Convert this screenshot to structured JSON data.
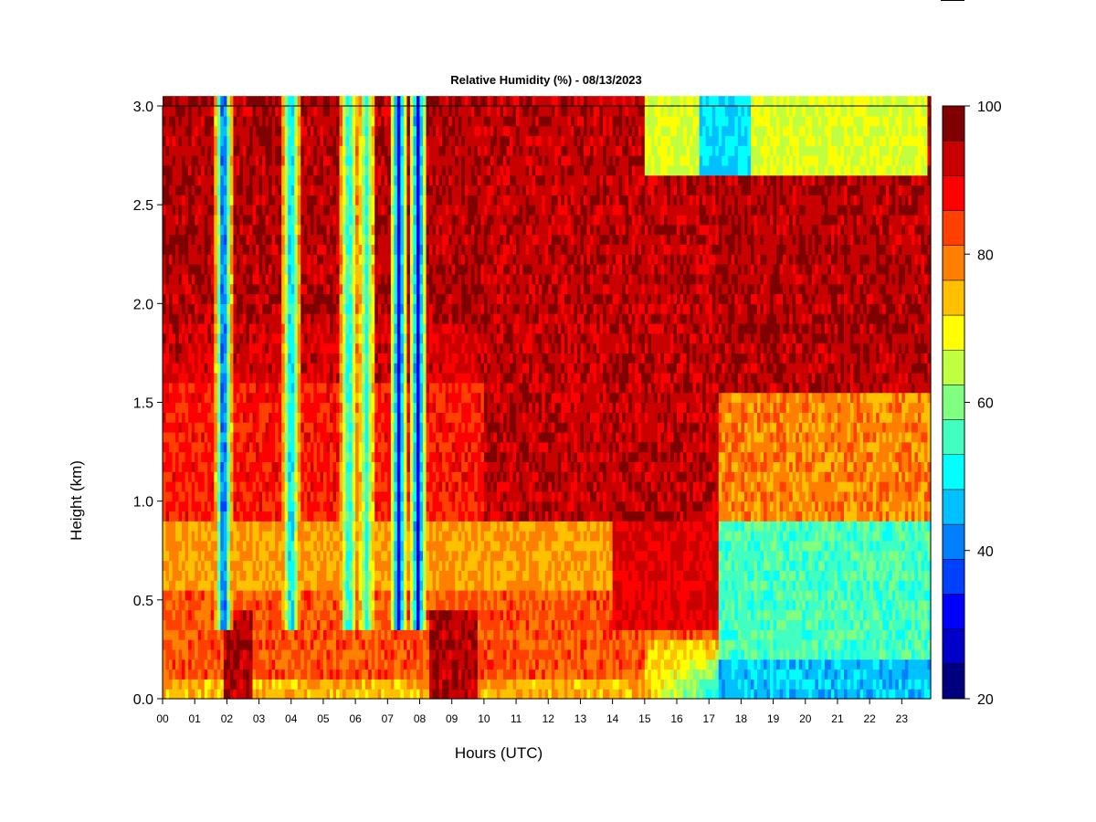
{
  "chart_data": {
    "type": "heatmap",
    "title": "Relative Humidity (%) - 08/13/2023",
    "xlabel": "Hours (UTC)",
    "ylabel": "Height (km)",
    "xlim": [
      0,
      23.9
    ],
    "ylim": [
      0,
      3.0
    ],
    "x_ticks": [
      "00",
      "01",
      "02",
      "03",
      "04",
      "05",
      "06",
      "07",
      "08",
      "09",
      "10",
      "11",
      "12",
      "13",
      "14",
      "15",
      "16",
      "17",
      "18",
      "19",
      "20",
      "21",
      "22",
      "23"
    ],
    "y_ticks": [
      "0.0",
      "0.5",
      "1.0",
      "1.5",
      "2.0",
      "2.5",
      "3.0"
    ],
    "colorbar": {
      "min": 20,
      "max": 100,
      "step": 5,
      "tick_labels": [
        "20",
        "40",
        "60",
        "80",
        "100"
      ],
      "colors": [
        "#00007f",
        "#0000c8",
        "#0000ff",
        "#0040ff",
        "#0080ff",
        "#00c0ff",
        "#00ffff",
        "#40ffc0",
        "#80ff80",
        "#c0ff40",
        "#ffff00",
        "#ffc000",
        "#ff8000",
        "#ff4000",
        "#ff0000",
        "#c80000",
        "#7f0000"
      ]
    },
    "dry_columns": [
      {
        "hour": 1.9,
        "min_rh": 35
      },
      {
        "hour": 4.0,
        "min_rh": 45
      },
      {
        "hour": 5.8,
        "min_rh": 50
      },
      {
        "hour": 6.35,
        "min_rh": 55
      },
      {
        "hour": 7.35,
        "min_rh": 30
      },
      {
        "hour": 7.95,
        "min_rh": 30
      }
    ],
    "grid": false
  }
}
